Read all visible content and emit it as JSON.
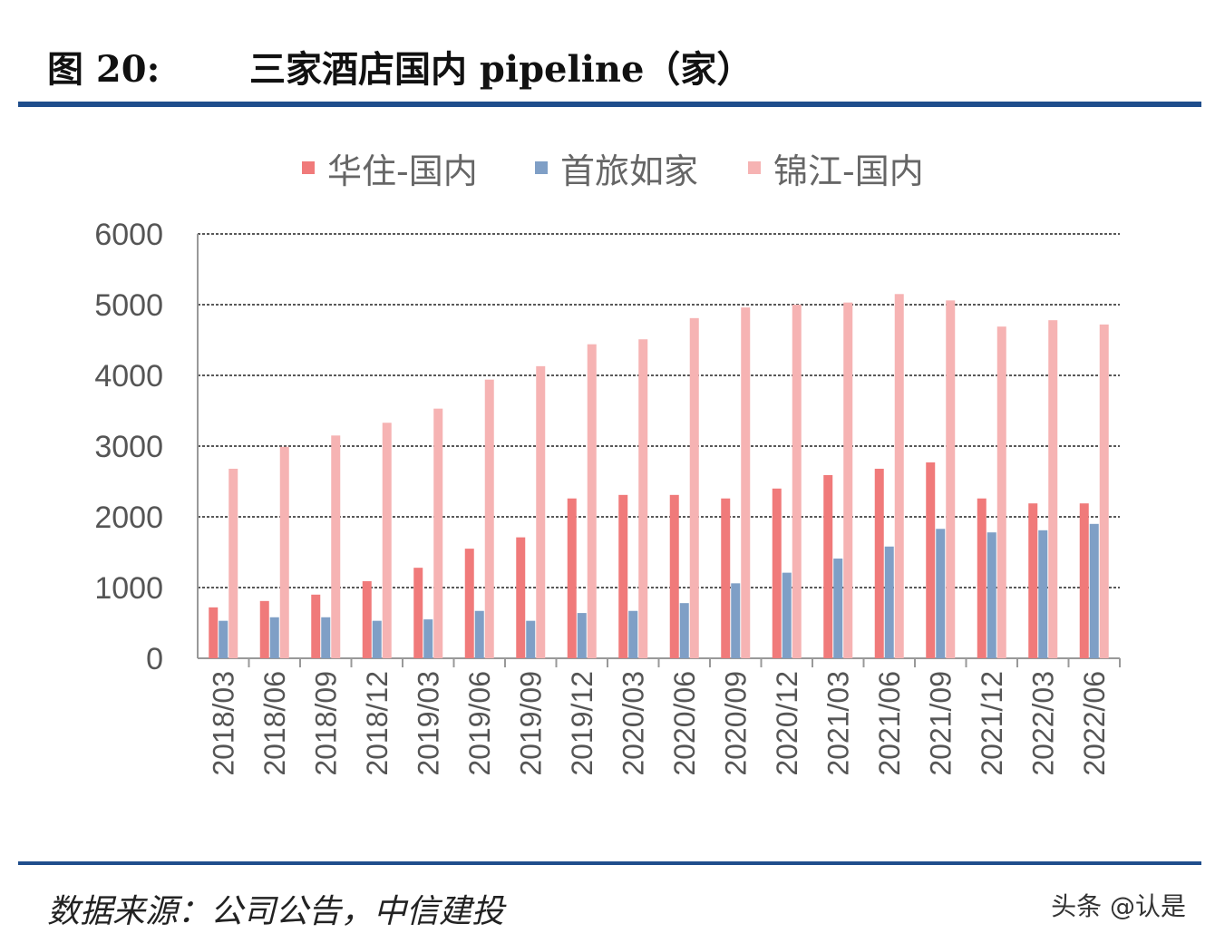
{
  "header": {
    "figure_label": "图 20:",
    "title": "三家酒店国内 pipeline（家）"
  },
  "footer": {
    "source": "数据来源：公司公告，中信建投",
    "watermark": "头条 @认是"
  },
  "chart_data": {
    "type": "bar",
    "title": "",
    "xlabel": "",
    "ylabel": "",
    "ylim": [
      0,
      6000
    ],
    "yticks": [
      0,
      1000,
      2000,
      3000,
      4000,
      5000,
      6000
    ],
    "grid": true,
    "legend_position": "top",
    "categories": [
      "2018/03",
      "2018/06",
      "2018/09",
      "2018/12",
      "2019/03",
      "2019/06",
      "2019/09",
      "2019/12",
      "2020/03",
      "2020/06",
      "2020/09",
      "2020/12",
      "2021/03",
      "2021/06",
      "2021/09",
      "2021/12",
      "2022/03",
      "2022/06"
    ],
    "series": [
      {
        "name": "华住-国内",
        "color": "#f07a7a",
        "values": [
          720,
          810,
          900,
          1090,
          1280,
          1550,
          1710,
          2260,
          2310,
          2310,
          2260,
          2400,
          2590,
          2680,
          2770,
          2260,
          2190,
          2190
        ]
      },
      {
        "name": "首旅如家",
        "color": "#7f9fc6",
        "values": [
          530,
          580,
          580,
          530,
          550,
          670,
          530,
          640,
          670,
          780,
          1060,
          1210,
          1410,
          1580,
          1830,
          1780,
          1810,
          1900
        ]
      },
      {
        "name": "锦江-国内",
        "color": "#f6b3b3",
        "values": [
          2680,
          2990,
          3150,
          3330,
          3530,
          3940,
          4130,
          4440,
          4510,
          4810,
          4960,
          5000,
          5030,
          5150,
          5060,
          4690,
          4780,
          4720
        ]
      }
    ]
  }
}
